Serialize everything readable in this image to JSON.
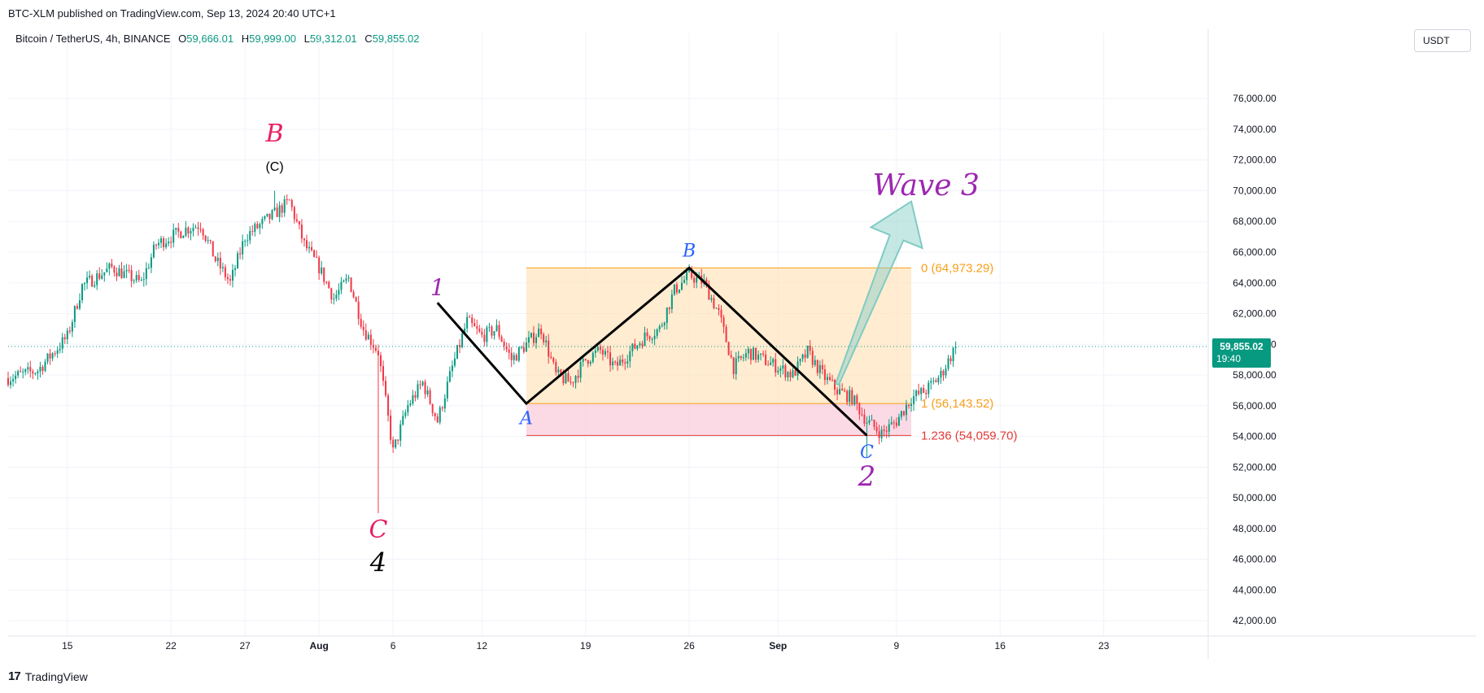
{
  "header": {
    "published": "BTC-XLM published on TradingView.com, Sep 13, 2024 20:40 UTC+1",
    "symbol": "Bitcoin / TetherUS, 4h, BINANCE",
    "ohlc": [
      {
        "k": "O",
        "v": "59,666.01"
      },
      {
        "k": "H",
        "v": "59,999.00"
      },
      {
        "k": "L",
        "v": "59,312.01"
      },
      {
        "k": "C",
        "v": "59,855.02"
      }
    ],
    "currency_button": "USDT"
  },
  "footer": {
    "logo": "17",
    "brand": "TradingView"
  },
  "colors": {
    "up": "#089981",
    "down": "#f23645",
    "fib_zone": "#ffe0b2",
    "fib_ext_zone": "#f8bbd0",
    "fib_line": "#f89f1a",
    "fib_ext_line": "#e53935",
    "wave_purple": "#9c27b0",
    "label_red": "#e91e63",
    "label_blue": "#2962ff",
    "projection_arrow": "#80cbc4"
  },
  "chart_data": {
    "type": "candlestick",
    "interval": "4h",
    "ylim": [
      41000,
      78500
    ],
    "y_ticks": [
      "42,000.00",
      "44,000.00",
      "46,000.00",
      "48,000.00",
      "50,000.00",
      "52,000.00",
      "54,000.00",
      "56,000.00",
      "58,000.00",
      "60,000.00",
      "62,000.00",
      "64,000.00",
      "66,000.00",
      "68,000.00",
      "70,000.00",
      "72,000.00",
      "74,000.00",
      "76,000.00"
    ],
    "x_range_days": [
      "2024-07-11T00:00",
      "2024-09-30T00:00"
    ],
    "x_ticks": [
      {
        "date": "2024-07-15",
        "label": "15"
      },
      {
        "date": "2024-07-22",
        "label": "22"
      },
      {
        "date": "2024-07-27",
        "label": "27"
      },
      {
        "date": "2024-08-01",
        "label": "Aug"
      },
      {
        "date": "2024-08-06",
        "label": "6"
      },
      {
        "date": "2024-08-12",
        "label": "12"
      },
      {
        "date": "2024-08-19",
        "label": "19"
      },
      {
        "date": "2024-08-26",
        "label": "26"
      },
      {
        "date": "2024-09-01",
        "label": "Sep"
      },
      {
        "date": "2024-09-09",
        "label": "9"
      },
      {
        "date": "2024-09-16",
        "label": "16"
      },
      {
        "date": "2024-09-23",
        "label": "23"
      }
    ],
    "price_path": [
      {
        "date": "2024-07-11",
        "price": 57800
      },
      {
        "date": "2024-07-13",
        "price": 58300
      },
      {
        "date": "2024-07-15",
        "price": 60500
      },
      {
        "date": "2024-07-16",
        "price": 63800
      },
      {
        "date": "2024-07-18",
        "price": 65000
      },
      {
        "date": "2024-07-20",
        "price": 64000
      },
      {
        "date": "2024-07-21",
        "price": 66500
      },
      {
        "date": "2024-07-23",
        "price": 67500
      },
      {
        "date": "2024-07-24",
        "price": 67800
      },
      {
        "date": "2024-07-25",
        "price": 65500
      },
      {
        "date": "2024-07-26",
        "price": 64000
      },
      {
        "date": "2024-07-27",
        "price": 67000
      },
      {
        "date": "2024-07-29",
        "price": 68500
      },
      {
        "date": "2024-07-30",
        "price": 69300
      },
      {
        "date": "2024-07-31",
        "price": 66500
      },
      {
        "date": "2024-08-01",
        "price": 65000
      },
      {
        "date": "2024-08-02",
        "price": 63000
      },
      {
        "date": "2024-08-03",
        "price": 64300
      },
      {
        "date": "2024-08-04",
        "price": 61000
      },
      {
        "date": "2024-08-05",
        "price": 59500
      },
      {
        "date": "2024-08-06",
        "price": 53000
      },
      {
        "date": "2024-08-07",
        "price": 56000
      },
      {
        "date": "2024-08-08",
        "price": 57500
      },
      {
        "date": "2024-08-09",
        "price": 55000
      },
      {
        "date": "2024-08-10",
        "price": 58500
      },
      {
        "date": "2024-08-11",
        "price": 61500
      },
      {
        "date": "2024-08-12",
        "price": 60500
      },
      {
        "date": "2024-08-13",
        "price": 61000
      },
      {
        "date": "2024-08-14",
        "price": 59000
      },
      {
        "date": "2024-08-15",
        "price": 60000
      },
      {
        "date": "2024-08-16",
        "price": 61000
      },
      {
        "date": "2024-08-17",
        "price": 58000
      },
      {
        "date": "2024-08-18",
        "price": 57500
      },
      {
        "date": "2024-08-19",
        "price": 59000
      },
      {
        "date": "2024-08-20",
        "price": 59600
      },
      {
        "date": "2024-08-21",
        "price": 58500
      },
      {
        "date": "2024-08-22",
        "price": 59500
      },
      {
        "date": "2024-08-23",
        "price": 60500
      },
      {
        "date": "2024-08-24",
        "price": 61000
      },
      {
        "date": "2024-08-25",
        "price": 63500
      },
      {
        "date": "2024-08-26",
        "price": 64500
      },
      {
        "date": "2024-08-27",
        "price": 64000
      },
      {
        "date": "2024-08-28",
        "price": 62000
      },
      {
        "date": "2024-08-29",
        "price": 58500
      },
      {
        "date": "2024-08-30",
        "price": 59500
      },
      {
        "date": "2024-08-31",
        "price": 59000
      },
      {
        "date": "2024-09-01",
        "price": 58500
      },
      {
        "date": "2024-09-02",
        "price": 58000
      },
      {
        "date": "2024-09-03",
        "price": 59500
      },
      {
        "date": "2024-09-04",
        "price": 58000
      },
      {
        "date": "2024-09-05",
        "price": 57000
      },
      {
        "date": "2024-09-06",
        "price": 56500
      },
      {
        "date": "2024-09-07",
        "price": 55000
      },
      {
        "date": "2024-09-08",
        "price": 54200
      },
      {
        "date": "2024-09-09",
        "price": 55000
      },
      {
        "date": "2024-09-10",
        "price": 56500
      },
      {
        "date": "2024-09-11",
        "price": 57000
      },
      {
        "date": "2024-09-12",
        "price": 58000
      },
      {
        "date": "2024-09-13",
        "price": 59855
      }
    ],
    "extremes": [
      {
        "date": "2024-07-29",
        "price": 70000,
        "type": "high"
      },
      {
        "date": "2024-08-05",
        "price": 49000,
        "type": "low"
      },
      {
        "date": "2024-09-07",
        "price": 52600,
        "type": "low"
      }
    ],
    "current_price": {
      "value": 59855.02,
      "label": "59,855.02",
      "countdown": "19:40"
    },
    "fib": {
      "start": "2024-08-15",
      "end": "2024-09-10",
      "levels": [
        {
          "ratio": 0,
          "price": 64973.29,
          "label": "0 (64,973.29)"
        },
        {
          "ratio": 1,
          "price": 56143.52,
          "label": "1 (56,143.52)"
        },
        {
          "ratio": 1.236,
          "price": 54059.7,
          "label": "1.236 (54,059.70)"
        }
      ]
    },
    "abc_zigzag": [
      {
        "date": "2024-08-09",
        "price": 62700
      },
      {
        "date": "2024-08-15",
        "price": 56143.52
      },
      {
        "date": "2024-08-26",
        "price": 64973.29
      },
      {
        "date": "2024-09-07",
        "price": 54059.7
      }
    ],
    "projection_arrow": {
      "from": {
        "date": "2024-09-05",
        "price": 57400
      },
      "to": {
        "date": "2024-09-10",
        "price": 69300
      }
    },
    "annotations": [
      {
        "text": "B",
        "date": "2024-07-29",
        "price": 73200,
        "color": "label_red",
        "style": "italic",
        "size": 30
      },
      {
        "text": "(C)",
        "date": "2024-07-29",
        "price": 71300,
        "color": "black",
        "style": "normal",
        "size": 16
      },
      {
        "text": "C",
        "date": "2024-08-05",
        "price": 47400,
        "color": "label_red",
        "style": "italic",
        "size": 30
      },
      {
        "text": "4",
        "date": "2024-08-05",
        "price": 45200,
        "color": "black",
        "style": "italic",
        "size": 32
      },
      {
        "text": "1",
        "date": "2024-08-09",
        "price": 63200,
        "color": "wave_purple",
        "style": "italic",
        "size": 28
      },
      {
        "text": "A",
        "date": "2024-08-15",
        "price": 54800,
        "color": "label_blue",
        "style": "italic",
        "size": 22
      },
      {
        "text": "B",
        "date": "2024-08-26",
        "price": 65700,
        "color": "label_blue",
        "style": "italic",
        "size": 22
      },
      {
        "text": "C",
        "date": "2024-09-07",
        "price": 52600,
        "color": "label_blue",
        "style": "italic",
        "size": 22
      },
      {
        "text": "2",
        "date": "2024-09-07",
        "price": 50800,
        "color": "wave_purple",
        "style": "italic",
        "size": 34
      },
      {
        "text": "Wave 3",
        "date": "2024-09-11",
        "price": 69700,
        "color": "wave_purple",
        "style": "italic",
        "size": 36
      }
    ]
  }
}
